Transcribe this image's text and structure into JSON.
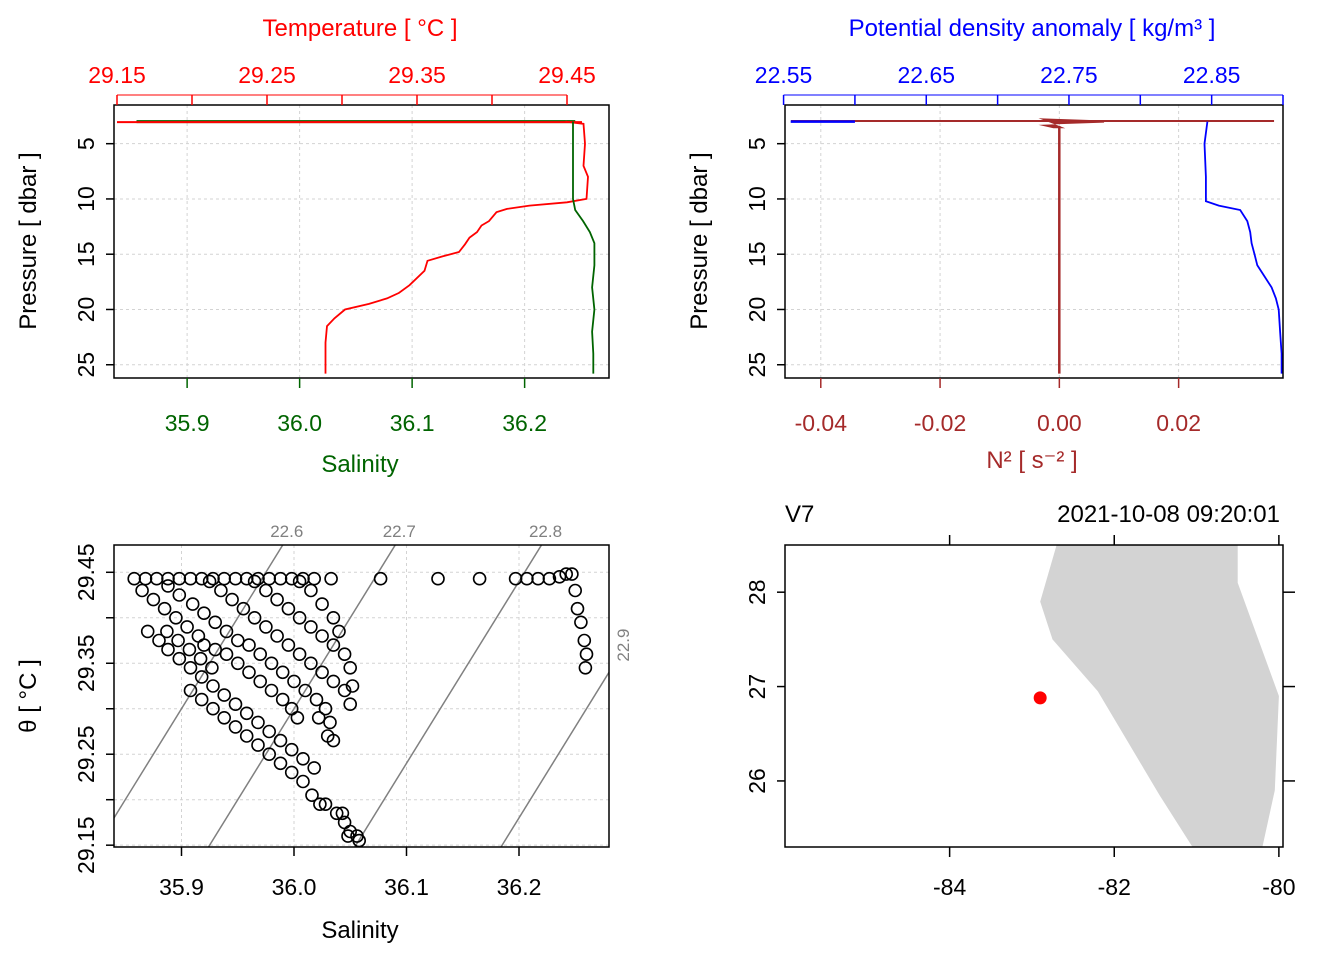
{
  "chart_data": [
    {
      "type": "line",
      "panel": "temperature-salinity-profile",
      "top_axis_label": "Temperature [ °C ]",
      "bottom_axis_label": "Salinity",
      "left_axis_label": "Pressure [ dbar ]",
      "top_ticks": [
        "29.15",
        "29.25",
        "29.35",
        "29.45"
      ],
      "bottom_ticks": [
        "35.9",
        "36.0",
        "36.1",
        "36.2"
      ],
      "left_ticks": [
        "5",
        "10",
        "15",
        "20",
        "25"
      ],
      "temperature_lim": [
        29.148,
        29.478
      ],
      "salinity_lim": [
        35.835,
        36.275
      ],
      "pressure_lim": [
        26.2,
        1.5
      ],
      "y_reversed": true,
      "grid": "dotted",
      "colors": {
        "temperature": "#ff0000",
        "salinity": "#006400"
      },
      "series": [
        {
          "variable": "temperature",
          "values": [
            [
              29.449,
              3
            ],
            [
              29.461,
              3.2
            ],
            [
              29.462,
              5
            ],
            [
              29.461,
              7
            ],
            [
              29.464,
              8
            ],
            [
              29.463,
              10
            ],
            [
              29.45,
              10.3
            ],
            [
              29.425,
              10.6
            ],
            [
              29.41,
              10.9
            ],
            [
              29.403,
              11.2
            ],
            [
              29.398,
              12
            ],
            [
              29.393,
              12.4
            ],
            [
              29.39,
              13
            ],
            [
              29.385,
              13.5
            ],
            [
              29.382,
              14.1
            ],
            [
              29.378,
              14.8
            ],
            [
              29.367,
              15.2
            ],
            [
              29.357,
              15.6
            ],
            [
              29.355,
              16.5
            ],
            [
              29.345,
              17.8
            ],
            [
              29.338,
              18.5
            ],
            [
              29.33,
              19
            ],
            [
              29.318,
              19.5
            ],
            [
              29.302,
              20
            ],
            [
              29.295,
              20.8
            ],
            [
              29.29,
              21.5
            ],
            [
              29.289,
              23
            ],
            [
              29.289,
              25.8
            ]
          ]
        },
        {
          "variable": "salinity",
          "values": [
            [
              36.243,
              3
            ],
            [
              36.243,
              5
            ],
            [
              36.243,
              8
            ],
            [
              36.243,
              10
            ],
            [
              36.245,
              11
            ],
            [
              36.252,
              12
            ],
            [
              36.258,
              13
            ],
            [
              36.262,
              14
            ],
            [
              36.262,
              16
            ],
            [
              36.26,
              18
            ],
            [
              36.262,
              20
            ],
            [
              36.26,
              22
            ],
            [
              36.261,
              24
            ],
            [
              36.261,
              25.8
            ]
          ]
        }
      ]
    },
    {
      "type": "line",
      "panel": "density-stability-profile",
      "top_axis_label": "Potential density anomaly [ kg/m³ ]",
      "bottom_axis_label": "N² [ s⁻² ]",
      "left_axis_label": "Pressure [ dbar ]",
      "top_ticks": [
        "22.55",
        "22.65",
        "22.75",
        "22.85"
      ],
      "bottom_ticks": [
        "-0.04",
        "-0.02",
        "0.00",
        "0.02"
      ],
      "left_ticks": [
        "5",
        "10",
        "15",
        "20",
        "25"
      ],
      "sigma_lim": [
        22.551,
        22.9
      ],
      "n2_lim": [
        -0.046,
        0.0375
      ],
      "pressure_lim": [
        26.2,
        1.5
      ],
      "y_reversed": true,
      "grid": "dotted",
      "colors": {
        "sigma": "#0000ff",
        "n2": "#a52a2a"
      },
      "series": [
        {
          "variable": "sigma",
          "values": [
            [
              22.847,
              3
            ],
            [
              22.845,
              5
            ],
            [
              22.846,
              8
            ],
            [
              22.846,
              10.2
            ],
            [
              22.855,
              10.6
            ],
            [
              22.87,
              11
            ],
            [
              22.875,
              12
            ],
            [
              22.877,
              13
            ],
            [
              22.878,
              14
            ],
            [
              22.88,
              15
            ],
            [
              22.882,
              16
            ],
            [
              22.887,
              17
            ],
            [
              22.892,
              18
            ],
            [
              22.895,
              19
            ],
            [
              22.897,
              20
            ],
            [
              22.898,
              22
            ],
            [
              22.899,
              24
            ],
            [
              22.899,
              25.8
            ]
          ]
        },
        {
          "variable": "N2",
          "values": [
            [
              0,
              3.4
            ],
            [
              0,
              6
            ],
            [
              0,
              10
            ],
            [
              0,
              15
            ],
            [
              0,
              20
            ],
            [
              0,
              25.8
            ]
          ]
        }
      ]
    },
    {
      "type": "scatter",
      "panel": "ts-diagram",
      "xlabel": "Salinity",
      "ylabel": "θ [ °C ]",
      "xlim": [
        35.84,
        36.28
      ],
      "ylim": [
        29.148,
        29.48
      ],
      "x_ticks": [
        "35.9",
        "36.0",
        "36.1",
        "36.2"
      ],
      "y_ticks": [
        "29.15",
        "29.25",
        "29.35",
        "29.45"
      ],
      "grid": "dotted",
      "isopycnals": [
        {
          "label": "22.6",
          "value": 22.6
        },
        {
          "label": "22.7",
          "value": 22.7
        },
        {
          "label": "22.8",
          "value": 22.8
        },
        {
          "label": "22.9",
          "value": 22.9
        }
      ],
      "points": [
        [
          35.858,
          29.443
        ],
        [
          35.868,
          29.443
        ],
        [
          35.878,
          29.443
        ],
        [
          35.888,
          29.443
        ],
        [
          35.898,
          29.443
        ],
        [
          35.908,
          29.443
        ],
        [
          35.918,
          29.443
        ],
        [
          35.928,
          29.443
        ],
        [
          35.938,
          29.443
        ],
        [
          35.948,
          29.443
        ],
        [
          35.958,
          29.443
        ],
        [
          35.968,
          29.443
        ],
        [
          35.978,
          29.443
        ],
        [
          35.988,
          29.443
        ],
        [
          35.998,
          29.443
        ],
        [
          36.008,
          29.443
        ],
        [
          36.018,
          29.443
        ],
        [
          36.033,
          29.443
        ],
        [
          36.077,
          29.443
        ],
        [
          36.128,
          29.443
        ],
        [
          36.165,
          29.443
        ],
        [
          36.197,
          29.443
        ],
        [
          36.207,
          29.443
        ],
        [
          36.217,
          29.443
        ],
        [
          36.227,
          29.443
        ],
        [
          36.236,
          29.445
        ],
        [
          36.242,
          29.448
        ],
        [
          36.247,
          29.448
        ],
        [
          36.25,
          29.43
        ],
        [
          36.252,
          29.41
        ],
        [
          36.255,
          29.395
        ],
        [
          36.258,
          29.375
        ],
        [
          36.26,
          29.36
        ],
        [
          36.259,
          29.345
        ],
        [
          35.865,
          29.43
        ],
        [
          35.875,
          29.42
        ],
        [
          35.885,
          29.41
        ],
        [
          35.895,
          29.4
        ],
        [
          35.905,
          29.39
        ],
        [
          35.915,
          29.38
        ],
        [
          35.92,
          29.37
        ],
        [
          35.93,
          29.365
        ],
        [
          35.94,
          29.36
        ],
        [
          35.95,
          29.35
        ],
        [
          35.96,
          29.34
        ],
        [
          35.97,
          29.33
        ],
        [
          35.98,
          29.32
        ],
        [
          35.99,
          29.31
        ],
        [
          35.998,
          29.3
        ],
        [
          36.003,
          29.29
        ],
        [
          35.888,
          29.435
        ],
        [
          35.898,
          29.425
        ],
        [
          35.91,
          29.415
        ],
        [
          35.92,
          29.405
        ],
        [
          35.93,
          29.395
        ],
        [
          35.94,
          29.385
        ],
        [
          35.95,
          29.375
        ],
        [
          35.96,
          29.37
        ],
        [
          35.97,
          29.36
        ],
        [
          35.98,
          29.35
        ],
        [
          35.99,
          29.34
        ],
        [
          36.0,
          29.33
        ],
        [
          36.01,
          29.32
        ],
        [
          36.02,
          29.31
        ],
        [
          36.028,
          29.3
        ],
        [
          36.032,
          29.285
        ],
        [
          35.925,
          29.44
        ],
        [
          35.935,
          29.43
        ],
        [
          35.945,
          29.42
        ],
        [
          35.955,
          29.41
        ],
        [
          35.965,
          29.4
        ],
        [
          35.975,
          29.39
        ],
        [
          35.985,
          29.38
        ],
        [
          35.995,
          29.37
        ],
        [
          36.005,
          29.36
        ],
        [
          36.015,
          29.35
        ],
        [
          36.025,
          29.34
        ],
        [
          36.035,
          29.33
        ],
        [
          36.045,
          29.32
        ],
        [
          36.05,
          29.305
        ],
        [
          35.965,
          29.44
        ],
        [
          35.975,
          29.43
        ],
        [
          35.985,
          29.42
        ],
        [
          35.995,
          29.41
        ],
        [
          36.005,
          29.4
        ],
        [
          36.015,
          29.39
        ],
        [
          36.025,
          29.38
        ],
        [
          36.035,
          29.37
        ],
        [
          36.045,
          29.36
        ],
        [
          36.05,
          29.345
        ],
        [
          36.052,
          29.325
        ],
        [
          36.005,
          29.44
        ],
        [
          36.015,
          29.43
        ],
        [
          36.025,
          29.415
        ],
        [
          36.035,
          29.4
        ],
        [
          36.04,
          29.385
        ],
        [
          35.887,
          29.385
        ],
        [
          35.897,
          29.375
        ],
        [
          35.907,
          29.365
        ],
        [
          35.917,
          29.355
        ],
        [
          35.927,
          29.345
        ],
        [
          35.87,
          29.385
        ],
        [
          35.88,
          29.375
        ],
        [
          35.888,
          29.365
        ],
        [
          35.898,
          29.355
        ],
        [
          35.908,
          29.345
        ],
        [
          35.918,
          29.335
        ],
        [
          35.928,
          29.325
        ],
        [
          35.938,
          29.315
        ],
        [
          35.948,
          29.305
        ],
        [
          35.958,
          29.295
        ],
        [
          35.968,
          29.285
        ],
        [
          35.978,
          29.275
        ],
        [
          35.988,
          29.265
        ],
        [
          35.998,
          29.255
        ],
        [
          36.008,
          29.245
        ],
        [
          36.018,
          29.235
        ],
        [
          35.908,
          29.32
        ],
        [
          35.918,
          29.31
        ],
        [
          35.928,
          29.3
        ],
        [
          35.938,
          29.29
        ],
        [
          35.948,
          29.28
        ],
        [
          35.958,
          29.27
        ],
        [
          35.968,
          29.26
        ],
        [
          35.978,
          29.25
        ],
        [
          35.988,
          29.24
        ],
        [
          35.998,
          29.23
        ],
        [
          36.008,
          29.22
        ],
        [
          36.016,
          29.205
        ],
        [
          36.028,
          29.195
        ],
        [
          36.038,
          29.185
        ],
        [
          36.045,
          29.175
        ],
        [
          36.05,
          29.165
        ],
        [
          36.056,
          29.16
        ],
        [
          36.023,
          29.195
        ],
        [
          36.043,
          29.185
        ],
        [
          36.058,
          29.155
        ],
        [
          36.048,
          29.16
        ],
        [
          36.022,
          29.29
        ],
        [
          36.03,
          29.27
        ],
        [
          36.035,
          29.265
        ]
      ],
      "point_style": "open-circle"
    },
    {
      "type": "map",
      "panel": "station-map",
      "station": "V7",
      "datetime": "2021-10-08 09:20:01",
      "lon_lim": [
        -86.0,
        -79.95
      ],
      "lat_lim": [
        25.3,
        28.5
      ],
      "lon_ticks": [
        "-84",
        "-82",
        "-80"
      ],
      "lat_ticks": [
        "26",
        "27",
        "28"
      ],
      "station_position": {
        "lon": -82.9,
        "lat": 26.88
      },
      "land_color": "#d3d3d3",
      "station_color": "#ff0000",
      "land_outline": [
        [
          -82.7,
          28.5
        ],
        [
          -80.5,
          28.5
        ],
        [
          -80.5,
          28.1
        ],
        [
          -80.0,
          26.9
        ],
        [
          -80.05,
          25.9
        ],
        [
          -80.2,
          25.3
        ],
        [
          -81.05,
          25.3
        ],
        [
          -81.45,
          25.85
        ],
        [
          -82.2,
          26.95
        ],
        [
          -82.75,
          27.5
        ],
        [
          -82.9,
          27.9
        ]
      ]
    }
  ]
}
